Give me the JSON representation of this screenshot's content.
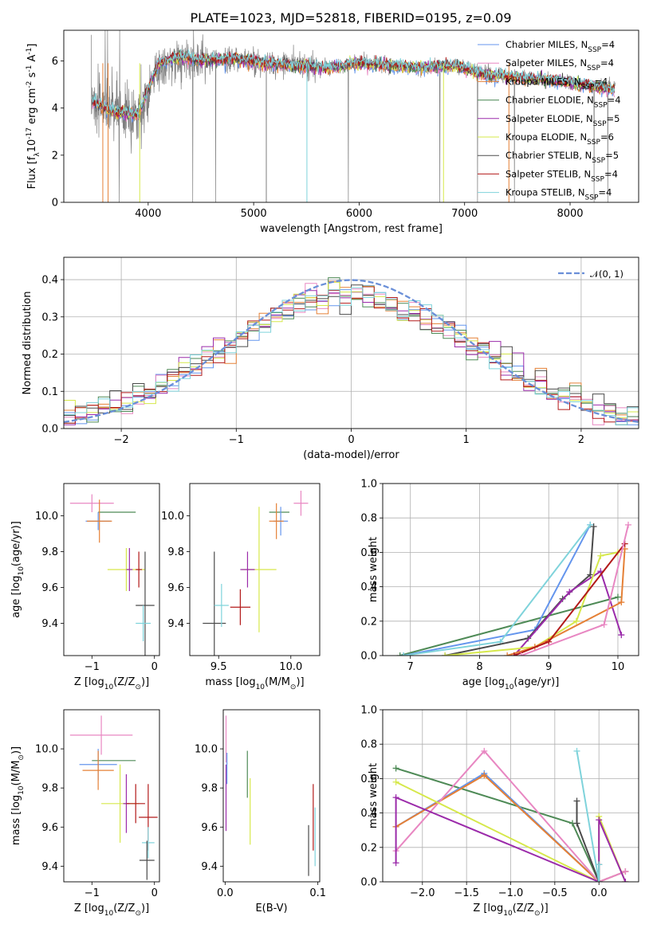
{
  "chart_data": [
    {
      "type": "line",
      "title": "PLATE=1023, MJD=52818, FIBERID=0195, z=0.09",
      "xlabel": "wavelength [Angstrom, rest frame]",
      "ylabel": "Flux [f$_\\lambda$10$^{-17}$ erg cm$^{-2}$ s$^{-1}$ A$^{-1}$]",
      "xlim": [
        3200,
        8650
      ],
      "ylim": [
        0,
        7.3
      ],
      "xticks": [
        "4000",
        "5000",
        "6000",
        "7000",
        "8000"
      ],
      "yticks": [
        "0",
        "2",
        "4",
        "6"
      ],
      "observed_spectrum": {
        "name": "",
        "color": "#7f7f7f",
        "x": [
          3500,
          3700,
          3900,
          4100,
          4300,
          4500,
          4800,
          5100,
          5400,
          5700,
          6000,
          6300,
          6600,
          6900,
          7200,
          7500,
          7800,
          8100,
          8400
        ],
        "y": [
          4.3,
          3.9,
          3.6,
          5.7,
          6.1,
          6.0,
          6.1,
          5.9,
          5.8,
          5.7,
          5.9,
          5.8,
          5.7,
          5.8,
          5.5,
          5.3,
          5.2,
          5.0,
          4.9
        ]
      },
      "models_series": [
        {
          "name": "Chabrier MILES, N$_{SSP}$=4",
          "color": "#6495ED"
        },
        {
          "name": "Salpeter MILES, N$_{SSP}$=4",
          "color": "#E887C2"
        },
        {
          "name": "Kroupa MILES, N$_{SSP}$=4",
          "color": "#E58036"
        },
        {
          "name": "Chabrier ELODIE, N$_{SSP}$=4",
          "color": "#4E8A56"
        },
        {
          "name": "Salpeter ELODIE, N$_{SSP}$=5",
          "color": "#9B2BAA"
        },
        {
          "name": "Kroupa ELODIE, N$_{SSP}$=6",
          "color": "#D6E84A"
        },
        {
          "name": "Chabrier STELIB, N$_{SSP}$=5",
          "color": "#4B4B4B"
        },
        {
          "name": "Salpeter STELIB, N$_{SSP}$=4",
          "color": "#B21A1A"
        },
        {
          "name": "Kroupa STELIB, N$_{SSP}$=4",
          "color": "#7FD3DB"
        }
      ],
      "model_shape": {
        "x": [
          3500,
          3700,
          3900,
          4100,
          4300,
          4500,
          4800,
          5100,
          5400,
          5700,
          6000,
          6300,
          6600,
          6900,
          7200,
          7500,
          7800,
          8100,
          8400
        ],
        "y": [
          4.2,
          3.8,
          3.7,
          5.9,
          6.2,
          6.0,
          6.1,
          5.9,
          5.8,
          5.7,
          5.9,
          5.8,
          5.7,
          5.8,
          5.4,
          5.3,
          5.2,
          5.0,
          4.8
        ]
      }
    },
    {
      "type": "line",
      "xlabel": "(data-model)/error",
      "ylabel": "Normed distribution",
      "xlim": [
        -2.5,
        2.5
      ],
      "ylim": [
        0,
        0.46
      ],
      "xticks": [
        "−2",
        "−1",
        "0",
        "1",
        "2"
      ],
      "yticks": [
        "0.0",
        "0.1",
        "0.2",
        "0.3",
        "0.4"
      ],
      "gaussian_label": "𝒩(0, 1)",
      "gaussian_color": "#6A8FD8",
      "histogram_bin_width": 0.1,
      "histogram_bin_start": -2.5
    },
    {
      "type": "scatter",
      "xlabel": "Z [log$_{10}$(Z/Z$_\\odot$)]",
      "ylabel": "age  [log$_{10}$(age/yr)]",
      "xlim": [
        -1.45,
        0.08
      ],
      "ylim": [
        9.22,
        10.18
      ],
      "xticks": [
        "−1",
        "0"
      ],
      "yticks": [
        "9.4",
        "9.6",
        "9.8",
        "10.0"
      ],
      "points": [
        {
          "x": -1.0,
          "y": 10.07,
          "xerr": 0.35,
          "yerr": 0.05,
          "color": "#E887C2"
        },
        {
          "x": -0.6,
          "y": 10.02,
          "xerr": 0.3,
          "yerr": 0.0,
          "color": "#4E8A56"
        },
        {
          "x": -0.9,
          "y": 9.97,
          "xerr": 0.2,
          "yerr": 0.05,
          "color": "#6495ED"
        },
        {
          "x": -0.88,
          "y": 9.97,
          "xerr": 0.2,
          "yerr": 0.12,
          "color": "#E58036"
        },
        {
          "x": -0.45,
          "y": 9.7,
          "xerr": 0.3,
          "yerr": 0.12,
          "color": "#D6E84A"
        },
        {
          "x": -0.25,
          "y": 9.7,
          "xerr": 0.05,
          "yerr": 0.1,
          "color": "#B21A1A"
        },
        {
          "x": -0.4,
          "y": 9.7,
          "xerr": 0.05,
          "yerr": 0.12,
          "color": "#9B2BAA"
        },
        {
          "x": -0.15,
          "y": 9.5,
          "xerr": 0.15,
          "yerr": 0.3,
          "color": "#4B4B4B"
        },
        {
          "x": -0.18,
          "y": 9.4,
          "xerr": 0.12,
          "yerr": 0.1,
          "color": "#7FD3DB"
        }
      ]
    },
    {
      "type": "scatter",
      "xlabel": "mass [log$_{10}$(M/M$_\\odot$)]",
      "ylabel": "",
      "xlim": [
        9.3,
        10.2
      ],
      "ylim": [
        9.22,
        10.18
      ],
      "xticks": [
        "9.5",
        "10.0"
      ],
      "yticks": [
        "9.4",
        "9.6",
        "9.8",
        "10.0"
      ],
      "points": [
        {
          "x": 10.07,
          "y": 10.07,
          "xerr": 0.05,
          "yerr": 0.07,
          "color": "#E887C2"
        },
        {
          "x": 9.92,
          "y": 10.02,
          "xerr": 0.07,
          "yerr": 0.0,
          "color": "#4E8A56"
        },
        {
          "x": 9.93,
          "y": 9.97,
          "xerr": 0.05,
          "yerr": 0.08,
          "color": "#6495ED"
        },
        {
          "x": 9.9,
          "y": 9.97,
          "xerr": 0.05,
          "yerr": 0.1,
          "color": "#E58036"
        },
        {
          "x": 9.78,
          "y": 9.7,
          "xerr": 0.12,
          "yerr": 0.35,
          "color": "#D6E84A"
        },
        {
          "x": 9.7,
          "y": 9.7,
          "xerr": 0.05,
          "yerr": 0.1,
          "color": "#9B2BAA"
        },
        {
          "x": 9.65,
          "y": 9.49,
          "xerr": 0.07,
          "yerr": 0.1,
          "color": "#B21A1A"
        },
        {
          "x": 9.47,
          "y": 9.4,
          "xerr": 0.08,
          "yerr": 0.4,
          "color": "#4B4B4B"
        },
        {
          "x": 9.52,
          "y": 9.5,
          "xerr": 0.05,
          "yerr": 0.12,
          "color": "#7FD3DB"
        }
      ]
    },
    {
      "type": "line",
      "xlabel": "age  [log$_{10}$(age/yr)]",
      "ylabel": "mass weight",
      "xlim": [
        6.6,
        10.3
      ],
      "ylim": [
        0,
        1.0
      ],
      "xticks": [
        "7",
        "8",
        "9",
        "10"
      ],
      "yticks": [
        "0.0",
        "0.2",
        "0.4",
        "0.6",
        "0.8",
        "1.0"
      ],
      "series": [
        {
          "color": "#4E8A56",
          "x": [
            6.85,
            10.0
          ],
          "y": [
            0.0,
            0.34
          ]
        },
        {
          "color": "#6495ED",
          "x": [
            6.9,
            8.8,
            9.6
          ],
          "y": [
            0.0,
            0.15,
            0.76
          ]
        },
        {
          "color": "#7FD3DB",
          "x": [
            6.9,
            8.3,
            9.6
          ],
          "y": [
            0.0,
            0.08,
            0.76
          ]
        },
        {
          "color": "#4B4B4B",
          "x": [
            7.5,
            8.7,
            9.2,
            9.6,
            9.65
          ],
          "y": [
            0.0,
            0.1,
            0.33,
            0.47,
            0.75
          ]
        },
        {
          "color": "#9B2BAA",
          "x": [
            8.5,
            9.3,
            9.75,
            10.05
          ],
          "y": [
            0.0,
            0.37,
            0.49,
            0.12
          ]
        },
        {
          "color": "#D6E84A",
          "x": [
            7.5,
            8.8,
            9.4,
            9.75,
            10.0
          ],
          "y": [
            0.0,
            0.05,
            0.2,
            0.58,
            0.6
          ]
        },
        {
          "color": "#E58036",
          "x": [
            8.4,
            8.8,
            10.05,
            10.1
          ],
          "y": [
            0.0,
            0.05,
            0.31,
            0.62
          ]
        },
        {
          "color": "#B21A1A",
          "x": [
            8.5,
            9.0,
            10.1
          ],
          "y": [
            0.0,
            0.08,
            0.65
          ]
        },
        {
          "color": "#E887C2",
          "x": [
            8.6,
            9.8,
            10.15
          ],
          "y": [
            0.0,
            0.18,
            0.76
          ]
        }
      ]
    },
    {
      "type": "scatter",
      "xlabel": "Z [log$_{10}$(Z/Z$_\\odot$)]",
      "ylabel": "mass [log$_{10}$(M/M$_\\odot$)]",
      "xlim": [
        -1.45,
        0.08
      ],
      "ylim": [
        9.32,
        10.2
      ],
      "xticks": [
        "−1",
        "0"
      ],
      "yticks": [
        "9.4",
        "9.6",
        "9.8",
        "10.0"
      ],
      "points": [
        {
          "x": -0.85,
          "y": 10.07,
          "xerr": 0.5,
          "yerr": 0.1,
          "color": "#E887C2"
        },
        {
          "x": -0.65,
          "y": 9.94,
          "xerr": 0.35,
          "yerr": 0.0,
          "color": "#4E8A56"
        },
        {
          "x": -0.9,
          "y": 9.92,
          "xerr": 0.3,
          "yerr": 0.08,
          "color": "#6495ED"
        },
        {
          "x": -0.9,
          "y": 9.89,
          "xerr": 0.25,
          "yerr": 0.1,
          "color": "#E58036"
        },
        {
          "x": -0.55,
          "y": 9.72,
          "xerr": 0.3,
          "yerr": 0.2,
          "color": "#D6E84A"
        },
        {
          "x": -0.45,
          "y": 9.72,
          "xerr": 0.05,
          "yerr": 0.15,
          "color": "#9B2BAA"
        },
        {
          "x": -0.3,
          "y": 9.72,
          "xerr": 0.15,
          "yerr": 0.1,
          "color": "#B21A1A"
        },
        {
          "x": -0.1,
          "y": 9.65,
          "xerr": 0.15,
          "yerr": 0.17,
          "color": "#B21A1A"
        },
        {
          "x": -0.1,
          "y": 9.52,
          "xerr": 0.1,
          "yerr": 0.08,
          "color": "#7FD3DB"
        },
        {
          "x": -0.12,
          "y": 9.43,
          "xerr": 0.12,
          "yerr": 0.1,
          "color": "#4B4B4B"
        }
      ]
    },
    {
      "type": "scatter",
      "xlabel": "E(B-V)",
      "ylabel": "",
      "xlim": [
        -0.002,
        0.102
      ],
      "ylim": [
        9.32,
        10.2
      ],
      "xticks": [
        "0.0",
        "0.1"
      ],
      "yticks": [
        "9.4",
        "9.6",
        "9.8",
        "10.0"
      ],
      "points": [
        {
          "x": 0.001,
          "y": 10.05,
          "xerr": 0,
          "yerr": 0.12,
          "color": "#E887C2"
        },
        {
          "x": 0.001,
          "y": 9.75,
          "xerr": 0,
          "yerr": 0.17,
          "color": "#9B2BAA"
        },
        {
          "x": 0.002,
          "y": 9.9,
          "xerr": 0,
          "yerr": 0.08,
          "color": "#6495ED"
        },
        {
          "x": 0.024,
          "y": 9.87,
          "xerr": 0,
          "yerr": 0.12,
          "color": "#4E8A56"
        },
        {
          "x": 0.027,
          "y": 9.68,
          "xerr": 0,
          "yerr": 0.17,
          "color": "#D6E84A"
        },
        {
          "x": 0.09,
          "y": 9.48,
          "xerr": 0,
          "yerr": 0.13,
          "color": "#4B4B4B"
        },
        {
          "x": 0.095,
          "y": 9.65,
          "xerr": 0,
          "yerr": 0.17,
          "color": "#B21A1A"
        },
        {
          "x": 0.097,
          "y": 9.55,
          "xerr": 0,
          "yerr": 0.15,
          "color": "#7FD3DB"
        }
      ]
    },
    {
      "type": "line",
      "xlabel": "Z [log$_{10}$(Z/Z$_\\odot$)]",
      "ylabel": "mass weight",
      "xlim": [
        -2.45,
        0.45
      ],
      "ylim": [
        0,
        1.0
      ],
      "xticks": [
        "−2.0",
        "−1.5",
        "−1.0",
        "−0.5",
        "0.0"
      ],
      "yticks": [
        "0.0",
        "0.2",
        "0.4",
        "0.6",
        "0.8",
        "1.0"
      ],
      "series": [
        {
          "color": "#4E8A56",
          "x": [
            -2.3,
            -0.3,
            0.0
          ],
          "y": [
            0.66,
            0.34,
            0.0
          ]
        },
        {
          "color": "#6495ED",
          "x": [
            -2.3,
            -1.3,
            0.0,
            0.3
          ],
          "y": [
            0.32,
            0.63,
            0.0,
            0.06
          ]
        },
        {
          "color": "#E58036",
          "x": [
            -2.3,
            -1.3,
            0.0,
            0.3
          ],
          "y": [
            0.32,
            0.62,
            0.0,
            0.06
          ]
        },
        {
          "color": "#E887C2",
          "x": [
            -2.3,
            -1.3,
            0.0,
            0.3
          ],
          "y": [
            0.18,
            0.76,
            0.0,
            0.06
          ]
        },
        {
          "color": "#D6E84A",
          "x": [
            -2.3,
            0.0,
            0.0,
            0.3
          ],
          "y": [
            0.58,
            0.0,
            0.38,
            0.0
          ]
        },
        {
          "color": "#9B2BAA",
          "x": [
            -2.3,
            -2.3,
            0.0,
            0.0,
            0.3
          ],
          "y": [
            0.11,
            0.49,
            0.0,
            0.36,
            0.0
          ]
        },
        {
          "color": "#4B4B4B",
          "x": [
            -0.25,
            -0.25,
            0.0,
            0.0
          ],
          "y": [
            0.47,
            0.34,
            0.0,
            0.1
          ]
        },
        {
          "color": "#7FD3DB",
          "x": [
            -0.25,
            0.0,
            0.0
          ],
          "y": [
            0.76,
            0.0,
            0.1
          ]
        }
      ]
    }
  ]
}
